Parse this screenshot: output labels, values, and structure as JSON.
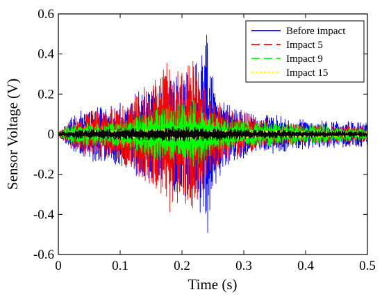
{
  "chart_data": {
    "type": "line",
    "xlabel": "Time (s)",
    "ylabel": "Sensor Voltage (V)",
    "xlim": [
      0,
      0.5
    ],
    "ylim": [
      -0.6,
      0.6
    ],
    "xticks": [
      0,
      0.1,
      0.2,
      0.3,
      0.4,
      0.5
    ],
    "xtick_labels": [
      "0",
      "0.1",
      "0.2",
      "0.3",
      "0.4",
      "0.5"
    ],
    "yticks": [
      -0.6,
      -0.4,
      -0.2,
      0,
      0.2,
      0.4,
      0.6
    ],
    "ytick_labels": [
      "-0.6",
      "-0.4",
      "-0.2",
      "0",
      "0.2",
      "0.4",
      "0.6"
    ],
    "grid": false,
    "legend_position": "top-right",
    "series": [
      {
        "name": "Before impact",
        "color": "#0000ff",
        "dash": "solid",
        "envelope": [
          [
            0,
            0.01
          ],
          [
            0.01,
            0.04
          ],
          [
            0.03,
            0.12
          ],
          [
            0.05,
            0.14
          ],
          [
            0.08,
            0.15
          ],
          [
            0.1,
            0.16
          ],
          [
            0.12,
            0.2
          ],
          [
            0.14,
            0.24
          ],
          [
            0.16,
            0.22
          ],
          [
            0.18,
            0.28
          ],
          [
            0.2,
            0.3
          ],
          [
            0.22,
            0.36
          ],
          [
            0.23,
            0.42
          ],
          [
            0.24,
            0.55
          ],
          [
            0.245,
            0.4
          ],
          [
            0.25,
            0.3
          ],
          [
            0.27,
            0.16
          ],
          [
            0.3,
            0.12
          ],
          [
            0.32,
            0.09
          ],
          [
            0.35,
            0.1
          ],
          [
            0.38,
            0.08
          ],
          [
            0.42,
            0.07
          ],
          [
            0.46,
            0.07
          ],
          [
            0.5,
            0.06
          ]
        ]
      },
      {
        "name": "Impact 5",
        "color": "#ff0000",
        "dash": "dashed",
        "envelope": [
          [
            0,
            0.01
          ],
          [
            0.01,
            0.04
          ],
          [
            0.03,
            0.1
          ],
          [
            0.05,
            0.12
          ],
          [
            0.08,
            0.12
          ],
          [
            0.1,
            0.14
          ],
          [
            0.12,
            0.18
          ],
          [
            0.14,
            0.24
          ],
          [
            0.16,
            0.28
          ],
          [
            0.175,
            0.38
          ],
          [
            0.18,
            0.42
          ],
          [
            0.19,
            0.36
          ],
          [
            0.2,
            0.34
          ],
          [
            0.21,
            0.36
          ],
          [
            0.22,
            0.4
          ],
          [
            0.23,
            0.32
          ],
          [
            0.24,
            0.22
          ],
          [
            0.26,
            0.16
          ],
          [
            0.28,
            0.12
          ],
          [
            0.3,
            0.12
          ],
          [
            0.32,
            0.08
          ],
          [
            0.36,
            0.06
          ],
          [
            0.4,
            0.05
          ],
          [
            0.45,
            0.05
          ],
          [
            0.5,
            0.04
          ]
        ]
      },
      {
        "name": "Impact 9",
        "color": "#00ff00",
        "dash": "dashed",
        "envelope": [
          [
            0,
            0.01
          ],
          [
            0.02,
            0.05
          ],
          [
            0.04,
            0.06
          ],
          [
            0.08,
            0.06
          ],
          [
            0.1,
            0.07
          ],
          [
            0.12,
            0.08
          ],
          [
            0.15,
            0.12
          ],
          [
            0.18,
            0.15
          ],
          [
            0.2,
            0.16
          ],
          [
            0.22,
            0.17
          ],
          [
            0.24,
            0.12
          ],
          [
            0.26,
            0.09
          ],
          [
            0.3,
            0.07
          ],
          [
            0.34,
            0.06
          ],
          [
            0.38,
            0.05
          ],
          [
            0.42,
            0.05
          ],
          [
            0.46,
            0.04
          ],
          [
            0.5,
            0.03
          ]
        ]
      },
      {
        "name": "Impact 15",
        "color": "#ffff00",
        "dash": "dotted",
        "envelope": [
          [
            0,
            0.005
          ],
          [
            0.05,
            0.02
          ],
          [
            0.15,
            0.025
          ],
          [
            0.2,
            0.03
          ],
          [
            0.25,
            0.025
          ],
          [
            0.35,
            0.02
          ],
          [
            0.5,
            0.015
          ]
        ]
      }
    ],
    "unlabeled_series": [
      {
        "color": "#000000",
        "envelope": [
          [
            0,
            0.01
          ],
          [
            0.03,
            0.025
          ],
          [
            0.1,
            0.03
          ],
          [
            0.15,
            0.035
          ],
          [
            0.2,
            0.04
          ],
          [
            0.25,
            0.035
          ],
          [
            0.3,
            0.025
          ],
          [
            0.4,
            0.02
          ],
          [
            0.5,
            0.015
          ]
        ]
      }
    ]
  }
}
